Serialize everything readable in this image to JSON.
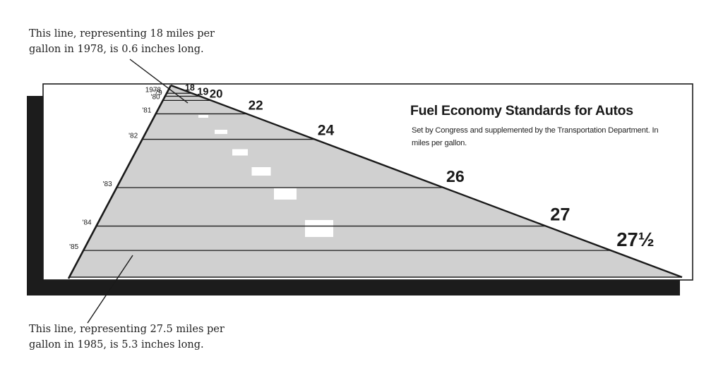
{
  "chart_data": {
    "type": "bar",
    "title": "Fuel Economy Standards for Autos",
    "subtitle": "Set by Congress and supplemented by the Transportation Department. In miles per gallon.",
    "categories": [
      "1978",
      "'79",
      "'80",
      "'81",
      "'82",
      "'83",
      "'84",
      "'85"
    ],
    "values": [
      18,
      19,
      20,
      22,
      24,
      26,
      27,
      27.5
    ],
    "value_labels": [
      "18",
      "19",
      "20",
      "22",
      "24",
      "26",
      "27",
      "27½"
    ],
    "annotations": [
      "This line, representing 18 miles per gallon in 1978, is 0.6 inches long.",
      "This line, representing 27.5 miles per gallon in 1985, is 5.3 inches long."
    ],
    "colors": {
      "road": "#d0d0d0",
      "ink": "#1a1a1a",
      "shadow": "#1c1c1c",
      "dash": "#ffffff"
    }
  }
}
